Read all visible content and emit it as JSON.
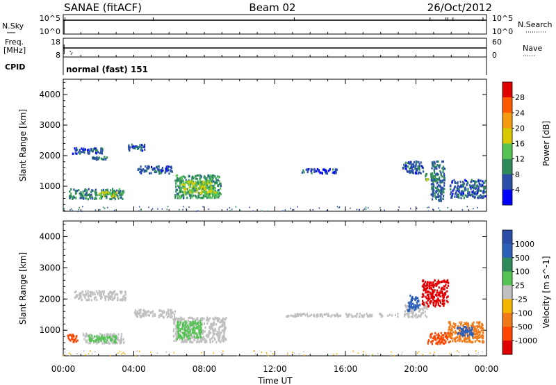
{
  "header": {
    "station": "SANAE (fitACF)",
    "beam": "Beam 02",
    "date": "26/Oct/2012"
  },
  "strips": {
    "nsky": {
      "label": "N.Sky",
      "ticks": [
        "10^5",
        "10^0"
      ],
      "right_label": "N.Search",
      "right_ticks": [
        "10^5",
        "10^0"
      ]
    },
    "freq": {
      "label_line1": "Freq.",
      "label_line2": "[MHz]",
      "ticks": [
        "18",
        "8"
      ],
      "right_label": "Nave",
      "right_ticks": [
        "60",
        "0"
      ]
    },
    "cpid": {
      "label": "CPID",
      "value": "normal (fast) 151"
    }
  },
  "colors": {
    "power": [
      "#0000ff",
      "#2b4fa8",
      "#2f8a5a",
      "#56c454",
      "#d7c800",
      "#f39c12",
      "#ff5a00",
      "#e10000"
    ],
    "velocity": [
      "#2a4ea6",
      "#2b5fb8",
      "#2f8a5a",
      "#56c454",
      "#c0c0c0",
      "#f5b400",
      "#f07a18",
      "#ff4500",
      "#e10000"
    ],
    "ground": "#b0b0b0"
  },
  "chart_data": [
    {
      "type": "heatmap",
      "name": "power",
      "ylabel": "Slant Range [km]",
      "xlabel": "Time UT",
      "xlim": [
        0,
        24
      ],
      "ylim": [
        180,
        4500
      ],
      "x_ticks": [
        "00:00",
        "04:00",
        "08:00",
        "12:00",
        "16:00",
        "20:00",
        "00:00"
      ],
      "y_ticks": [
        1000,
        2000,
        3000,
        4000
      ],
      "colorbar": {
        "label": "Power [dB]",
        "ticks": [
          "4",
          "8",
          "12",
          "16",
          "20",
          "24",
          "28"
        ],
        "range": [
          0,
          30
        ]
      },
      "features": [
        {
          "t0": 0.3,
          "t1": 3.4,
          "r0": 560,
          "r1": 900,
          "level": 9
        },
        {
          "t0": 1.9,
          "t1": 3.0,
          "r0": 650,
          "r1": 800,
          "level": 15
        },
        {
          "t0": 0.5,
          "t1": 2.3,
          "r0": 2050,
          "r1": 2250,
          "level": 6
        },
        {
          "t0": 1.6,
          "t1": 2.5,
          "r0": 1850,
          "r1": 1950,
          "level": 7
        },
        {
          "t0": 3.6,
          "t1": 4.6,
          "r0": 2150,
          "r1": 2350,
          "level": 6
        },
        {
          "t0": 4.2,
          "t1": 6.2,
          "r0": 1400,
          "r1": 1650,
          "level": 6
        },
        {
          "t0": 6.3,
          "t1": 8.9,
          "r0": 600,
          "r1": 1350,
          "level": 10
        },
        {
          "t0": 6.7,
          "t1": 8.4,
          "r0": 750,
          "r1": 1150,
          "level": 15
        },
        {
          "t0": 7.9,
          "t1": 8.8,
          "r0": 600,
          "r1": 800,
          "level": 14
        },
        {
          "t0": 13.5,
          "t1": 15.5,
          "r0": 1400,
          "r1": 1550,
          "level": 5
        },
        {
          "t0": 19.2,
          "t1": 20.4,
          "r0": 1400,
          "r1": 1800,
          "level": 6
        },
        {
          "t0": 20.5,
          "t1": 21.2,
          "r0": 1150,
          "r1": 1400,
          "level": 13
        },
        {
          "t0": 20.8,
          "t1": 21.6,
          "r0": 500,
          "r1": 1800,
          "level": 7
        },
        {
          "t0": 21.9,
          "t1": 23.9,
          "r0": 600,
          "r1": 1200,
          "level": 6
        }
      ]
    },
    {
      "type": "heatmap",
      "name": "velocity",
      "ylabel": "Slant Range [km]",
      "xlabel": "Time UT",
      "xlim": [
        0,
        24
      ],
      "ylim": [
        180,
        4500
      ],
      "x_ticks": [
        "00:00",
        "04:00",
        "08:00",
        "12:00",
        "16:00",
        "20:00",
        "00:00"
      ],
      "y_ticks": [
        1000,
        2000,
        3000,
        4000
      ],
      "colorbar": {
        "label": "Velocity [m s^-1]",
        "ticks": [
          "1000",
          "500",
          "100",
          "25",
          "-25",
          "-100",
          "-500",
          "-1000"
        ]
      },
      "features": [
        {
          "t0": 0.2,
          "t1": 0.8,
          "r0": 600,
          "r1": 850,
          "class": "neg500"
        },
        {
          "t0": 1.1,
          "t1": 3.4,
          "r0": 560,
          "r1": 880,
          "class": "ground"
        },
        {
          "t0": 1.4,
          "t1": 3.0,
          "r0": 600,
          "r1": 820,
          "class": "pos100"
        },
        {
          "t0": 0.6,
          "t1": 3.5,
          "r0": 1950,
          "r1": 2250,
          "class": "ground"
        },
        {
          "t0": 4.0,
          "t1": 6.3,
          "r0": 1400,
          "r1": 1650,
          "class": "ground"
        },
        {
          "t0": 6.2,
          "t1": 9.2,
          "r0": 600,
          "r1": 1400,
          "class": "ground"
        },
        {
          "t0": 6.4,
          "t1": 7.8,
          "r0": 700,
          "r1": 1300,
          "class": "pos100"
        },
        {
          "t0": 12.5,
          "t1": 19.0,
          "r0": 1420,
          "r1": 1520,
          "class": "ground"
        },
        {
          "t0": 19.3,
          "t1": 20.6,
          "r0": 1400,
          "r1": 1800,
          "class": "ground"
        },
        {
          "t0": 19.5,
          "t1": 20.2,
          "r0": 1600,
          "r1": 2100,
          "class": "pos500"
        },
        {
          "t0": 20.3,
          "t1": 21.8,
          "r0": 1750,
          "r1": 2600,
          "class": "neg1000"
        },
        {
          "t0": 20.6,
          "t1": 22.0,
          "r0": 550,
          "r1": 900,
          "class": "neg500"
        },
        {
          "t0": 21.8,
          "t1": 23.8,
          "r0": 600,
          "r1": 1250,
          "class": "neg100"
        },
        {
          "t0": 22.2,
          "t1": 23.2,
          "r0": 800,
          "r1": 1100,
          "class": "pos500"
        }
      ]
    }
  ],
  "time_axis": {
    "ticks": [
      "00:00",
      "04:00",
      "08:00",
      "12:00",
      "16:00",
      "20:00",
      "00:00"
    ],
    "label": "Time UT"
  }
}
